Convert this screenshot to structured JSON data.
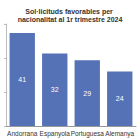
{
  "chart_data": {
    "type": "bar",
    "title": "Sol·licituds favorables per nacionalitat al 1r trimestre 2024",
    "categories": [
      "Andorrana",
      "Espanyola",
      "Portuguesa",
      "Alemanya"
    ],
    "values": [
      41,
      32,
      29,
      24
    ],
    "color": "#5472b5",
    "ylim": [
      0,
      45
    ],
    "yticks": [
      0,
      15,
      30,
      45
    ],
    "grid": false,
    "data_labels": true,
    "tick_labels": "x"
  }
}
